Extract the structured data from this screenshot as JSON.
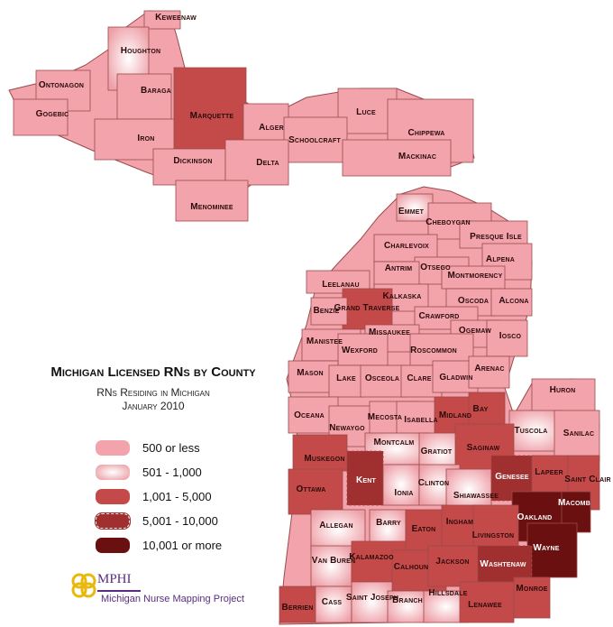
{
  "colors": {
    "low": "#f2a3ac",
    "mid": "#f6c6c9",
    "high": "#c44a4a",
    "vhigh": "#a03030",
    "top": "#6b1010"
  },
  "legend": {
    "title": "Michigan Licensed RNs by County",
    "subtitle_line1": "RNs Residing in Michigan",
    "subtitle_line2": "January 2010",
    "items": [
      {
        "label": "500 or less",
        "class": "low"
      },
      {
        "label": "501 - 1,000",
        "class": "mid"
      },
      {
        "label": "1,001 - 5,000",
        "class": "high"
      },
      {
        "label": "5,001 - 10,000",
        "class": "vhigh"
      },
      {
        "label": "10,001 or more",
        "class": "top"
      }
    ]
  },
  "logo": {
    "name": "MPHI",
    "project": "Michigan Nurse Mapping Project"
  },
  "counties": [
    {
      "name": "Keweenaw",
      "class": "low"
    },
    {
      "name": "Houghton",
      "class": "mid"
    },
    {
      "name": "Ontonagon",
      "class": "low"
    },
    {
      "name": "Baraga",
      "class": "low"
    },
    {
      "name": "Gogebic",
      "class": "low"
    },
    {
      "name": "Iron",
      "class": "low"
    },
    {
      "name": "Marquette",
      "class": "high"
    },
    {
      "name": "Alger",
      "class": "low"
    },
    {
      "name": "Luce",
      "class": "low"
    },
    {
      "name": "Schoolcraft",
      "class": "low"
    },
    {
      "name": "Chippewa",
      "class": "low"
    },
    {
      "name": "Dickinson",
      "class": "low"
    },
    {
      "name": "Delta",
      "class": "low"
    },
    {
      "name": "Mackinac",
      "class": "low"
    },
    {
      "name": "Menominee",
      "class": "low"
    },
    {
      "name": "Emmet",
      "class": "mid"
    },
    {
      "name": "Cheboygan",
      "class": "low"
    },
    {
      "name": "Presque Isle",
      "class": "low"
    },
    {
      "name": "Charlevoix",
      "class": "low"
    },
    {
      "name": "Alpena",
      "class": "low"
    },
    {
      "name": "Otsego",
      "class": "low"
    },
    {
      "name": "Antrim",
      "class": "low"
    },
    {
      "name": "Montmorency",
      "class": "low"
    },
    {
      "name": "Leelanau",
      "class": "low"
    },
    {
      "name": "Kalkaska",
      "class": "low"
    },
    {
      "name": "Oscoda",
      "class": "low"
    },
    {
      "name": "Alcona",
      "class": "low"
    },
    {
      "name": "Grand Traverse",
      "class": "high"
    },
    {
      "name": "Benzie",
      "class": "low"
    },
    {
      "name": "Crawford",
      "class": "low"
    },
    {
      "name": "Missaukee",
      "class": "low"
    },
    {
      "name": "Ogemaw",
      "class": "low"
    },
    {
      "name": "Iosco",
      "class": "low"
    },
    {
      "name": "Manistee",
      "class": "low"
    },
    {
      "name": "Wexford",
      "class": "low"
    },
    {
      "name": "Roscommon",
      "class": "low"
    },
    {
      "name": "Mason",
      "class": "low"
    },
    {
      "name": "Lake",
      "class": "low"
    },
    {
      "name": "Osceola",
      "class": "low"
    },
    {
      "name": "Clare",
      "class": "low"
    },
    {
      "name": "Gladwin",
      "class": "low"
    },
    {
      "name": "Arenac",
      "class": "low"
    },
    {
      "name": "Huron",
      "class": "low"
    },
    {
      "name": "Oceana",
      "class": "low"
    },
    {
      "name": "Newaygo",
      "class": "low"
    },
    {
      "name": "Mecosta",
      "class": "low"
    },
    {
      "name": "Isabella",
      "class": "low"
    },
    {
      "name": "Midland",
      "class": "high"
    },
    {
      "name": "Bay",
      "class": "high"
    },
    {
      "name": "Tuscola",
      "class": "mid"
    },
    {
      "name": "Sanilac",
      "class": "low"
    },
    {
      "name": "Muskegon",
      "class": "high"
    },
    {
      "name": "Montcalm",
      "class": "mid"
    },
    {
      "name": "Gratiot",
      "class": "mid"
    },
    {
      "name": "Saginaw",
      "class": "high"
    },
    {
      "name": "Kent",
      "class": "vhigh"
    },
    {
      "name": "Ottawa",
      "class": "high"
    },
    {
      "name": "Ionia",
      "class": "mid"
    },
    {
      "name": "Clinton",
      "class": "mid"
    },
    {
      "name": "Shiawassee",
      "class": "mid"
    },
    {
      "name": "Genesee",
      "class": "vhigh"
    },
    {
      "name": "Lapeer",
      "class": "high"
    },
    {
      "name": "Saint Clair",
      "class": "high"
    },
    {
      "name": "Macomb",
      "class": "top"
    },
    {
      "name": "Oakland",
      "class": "top"
    },
    {
      "name": "Allegan",
      "class": "mid"
    },
    {
      "name": "Barry",
      "class": "mid"
    },
    {
      "name": "Eaton",
      "class": "high"
    },
    {
      "name": "Ingham",
      "class": "high"
    },
    {
      "name": "Livingston",
      "class": "high"
    },
    {
      "name": "Wayne",
      "class": "top"
    },
    {
      "name": "Van Buren",
      "class": "mid"
    },
    {
      "name": "Kalamazoo",
      "class": "high"
    },
    {
      "name": "Calhoun",
      "class": "high"
    },
    {
      "name": "Jackson",
      "class": "high"
    },
    {
      "name": "Washtenaw",
      "class": "vhigh"
    },
    {
      "name": "Berrien",
      "class": "high"
    },
    {
      "name": "Cass",
      "class": "mid"
    },
    {
      "name": "Saint Joseph",
      "class": "mid"
    },
    {
      "name": "Branch",
      "class": "mid"
    },
    {
      "name": "Hillsdale",
      "class": "mid"
    },
    {
      "name": "Lenawee",
      "class": "high"
    },
    {
      "name": "Monroe",
      "class": "high"
    }
  ]
}
